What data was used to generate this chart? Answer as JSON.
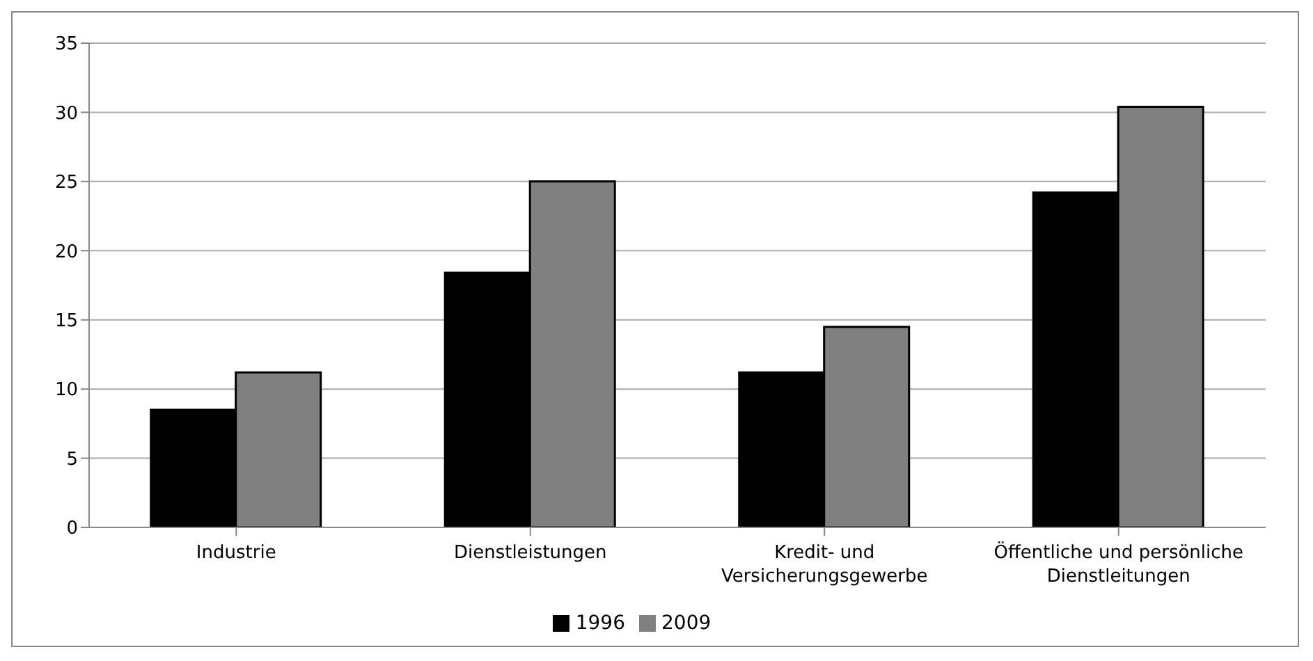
{
  "chart_data": {
    "type": "bar",
    "categories": [
      "Industrie",
      "Dienstleistungen",
      "Kredit- und Versicherungsgewerbe",
      "Öffentliche und persönliche Dienstleitungen"
    ],
    "series": [
      {
        "name": "1996",
        "color": "#000000",
        "values": [
          8.5,
          18.4,
          11.2,
          24.2
        ]
      },
      {
        "name": "2009",
        "color": "#808080",
        "values": [
          11.2,
          25.0,
          14.5,
          30.4
        ]
      }
    ],
    "ylim": [
      0,
      35
    ],
    "yticks": [
      0,
      5,
      10,
      15,
      20,
      25,
      30,
      35
    ],
    "grid": "y",
    "legend": "bottom"
  }
}
